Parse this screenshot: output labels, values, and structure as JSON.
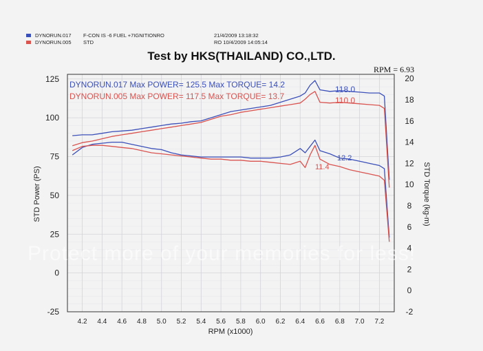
{
  "header": {
    "run1": {
      "id": "DYNORUN.017",
      "desc": "F-CON IS  -6 FUEL +7IGNITIONRO",
      "date": "21/4/2009 13:18:32",
      "color": "#3b4fb8"
    },
    "run2": {
      "id": "DYNORUN.005",
      "desc": "STD",
      "date": "RO  10/4/2009 14:05:14",
      "color": "#d9534f"
    }
  },
  "title": "Test by HKS(THAILAND) CO.,LTD.",
  "rpm_readout": "RPM = 6.93",
  "watermark": "Protect more of your memories for less!",
  "chart_data": {
    "type": "line",
    "xlabel": "RPM (x1000)",
    "ylabel_left": "STD Power (PS)",
    "ylabel_right": "STD Torque (kg-m)",
    "x_range": [
      4.05,
      7.35
    ],
    "y_left_range": [
      -25,
      128
    ],
    "y_right_range": [
      -2,
      20.4
    ],
    "x_ticks": [
      "4.2",
      "4.4",
      "4.6",
      "4.8",
      "5.0",
      "5.2",
      "5.4",
      "5.6",
      "5.8",
      "6.0",
      "6.2",
      "6.4",
      "6.6",
      "6.8",
      "7.0",
      "7.2"
    ],
    "y_left_ticks": [
      "-25",
      "0",
      "25",
      "50",
      "75",
      "100",
      "125"
    ],
    "y_right_ticks": [
      "-2",
      "0",
      "2",
      "4",
      "6",
      "8",
      "10",
      "12",
      "14",
      "16",
      "18",
      "20"
    ],
    "grid": true,
    "annotations": [
      {
        "series": "DYNORUN.017",
        "text": "DYNORUN.017  Max POWER= 125.5  Max TORQUE= 14.2"
      },
      {
        "series": "DYNORUN.005",
        "text": "DYNORUN.005  Max POWER= 117.5  Max TORQUE= 13.7"
      },
      {
        "text": "118.0",
        "color": "#3b4fb8"
      },
      {
        "text": "110.0",
        "color": "#d9534f"
      },
      {
        "text": "12.2",
        "color": "#3b4fb8"
      },
      {
        "text": "11.4",
        "color": "#d9534f"
      }
    ],
    "series": [
      {
        "name": "DYNORUN.017",
        "axis": "left",
        "color": "#3b4fb8",
        "x": [
          4.1,
          4.2,
          4.3,
          4.4,
          4.5,
          4.6,
          4.7,
          4.8,
          4.9,
          5.0,
          5.1,
          5.2,
          5.3,
          5.4,
          5.5,
          5.6,
          5.7,
          5.8,
          5.9,
          6.0,
          6.1,
          6.2,
          6.3,
          6.4,
          6.45,
          6.5,
          6.55,
          6.6,
          6.7,
          6.8,
          6.9,
          7.0,
          7.1,
          7.2,
          7.25,
          7.3
        ],
        "y": [
          88.5,
          89,
          89,
          90,
          91,
          91.5,
          92,
          93,
          94,
          95,
          96,
          96.5,
          97.5,
          98,
          100,
          102,
          104,
          105,
          106,
          107,
          108,
          110,
          112,
          114,
          116,
          121,
          124,
          118,
          117,
          117.5,
          117,
          116.5,
          116,
          116,
          114,
          60
        ]
      },
      {
        "name": "DYNORUN.005",
        "axis": "left",
        "color": "#d9534f",
        "x": [
          4.1,
          4.2,
          4.3,
          4.4,
          4.5,
          4.6,
          4.7,
          4.8,
          4.9,
          5.0,
          5.1,
          5.2,
          5.3,
          5.4,
          5.5,
          5.6,
          5.7,
          5.8,
          5.9,
          6.0,
          6.1,
          6.2,
          6.3,
          6.4,
          6.45,
          6.5,
          6.55,
          6.6,
          6.7,
          6.8,
          6.9,
          7.0,
          7.1,
          7.2,
          7.25,
          7.3
        ],
        "y": [
          82,
          84,
          85,
          86.5,
          88,
          89,
          90,
          91,
          92,
          93,
          94,
          95,
          96,
          97,
          99,
          101,
          102,
          103.5,
          104.5,
          105.5,
          106.5,
          107.5,
          108.5,
          109.5,
          112,
          115,
          117,
          110,
          109.5,
          110,
          109.5,
          109,
          108.5,
          108,
          106,
          55
        ]
      },
      {
        "name": "DYNORUN.017",
        "axis": "right",
        "color": "#3b4fb8",
        "x": [
          4.1,
          4.2,
          4.3,
          4.4,
          4.5,
          4.6,
          4.7,
          4.8,
          4.9,
          5.0,
          5.1,
          5.2,
          5.3,
          5.4,
          5.5,
          5.6,
          5.7,
          5.8,
          5.9,
          6.0,
          6.1,
          6.2,
          6.3,
          6.4,
          6.45,
          6.5,
          6.55,
          6.6,
          6.7,
          6.8,
          6.9,
          7.0,
          7.1,
          7.2,
          7.25,
          7.3
        ],
        "y": [
          12.8,
          13.5,
          13.8,
          13.9,
          14.0,
          14.0,
          13.8,
          13.6,
          13.4,
          13.3,
          13.0,
          12.8,
          12.7,
          12.6,
          12.6,
          12.6,
          12.6,
          12.6,
          12.5,
          12.5,
          12.5,
          12.6,
          12.8,
          13.4,
          13.0,
          13.6,
          14.2,
          13.2,
          12.9,
          12.5,
          12.4,
          12.2,
          12.0,
          11.8,
          11.5,
          5.0
        ]
      },
      {
        "name": "DYNORUN.005",
        "axis": "right",
        "color": "#d9534f",
        "x": [
          4.1,
          4.2,
          4.3,
          4.4,
          4.5,
          4.6,
          4.7,
          4.8,
          4.9,
          5.0,
          5.1,
          5.2,
          5.3,
          5.4,
          5.5,
          5.6,
          5.7,
          5.8,
          5.9,
          6.0,
          6.1,
          6.2,
          6.3,
          6.4,
          6.45,
          6.5,
          6.55,
          6.6,
          6.7,
          6.8,
          6.9,
          7.0,
          7.1,
          7.2,
          7.25,
          7.3
        ],
        "y": [
          13.2,
          13.6,
          13.7,
          13.7,
          13.6,
          13.5,
          13.4,
          13.2,
          13.0,
          12.9,
          12.8,
          12.7,
          12.6,
          12.5,
          12.4,
          12.4,
          12.3,
          12.3,
          12.2,
          12.2,
          12.1,
          12.0,
          11.9,
          12.2,
          11.6,
          12.8,
          13.7,
          12.4,
          11.9,
          11.7,
          11.4,
          11.2,
          11.0,
          10.8,
          10.4,
          4.6
        ]
      }
    ]
  }
}
